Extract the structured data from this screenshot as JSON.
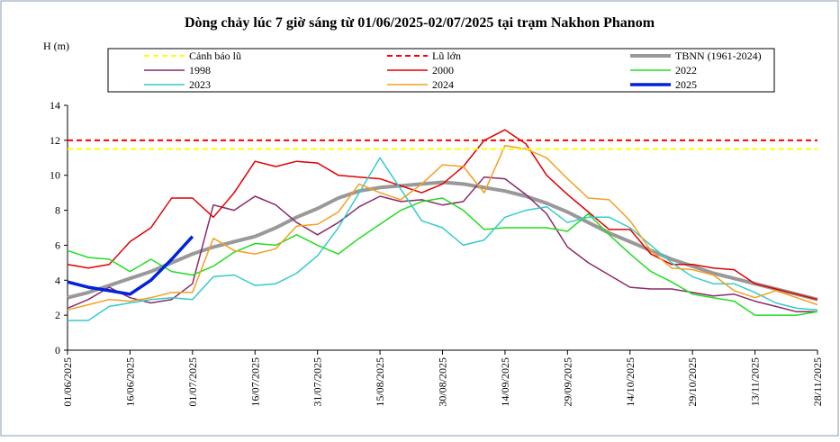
{
  "chart_data": {
    "type": "line",
    "title": "Dòng chảy lúc 7 giờ sáng từ 01/06/2025-02/07/2025 tại trạm Nakhon Phanom",
    "y_label": "H (m)",
    "x": [
      "01/06/2025",
      "06/06/2025",
      "11/06/2025",
      "16/06/2025",
      "21/06/2025",
      "26/06/2025",
      "01/07/2025",
      "06/07/2025",
      "11/07/2025",
      "16/07/2025",
      "21/07/2025",
      "26/07/2025",
      "31/07/2025",
      "05/08/2025",
      "10/08/2025",
      "15/08/2025",
      "20/08/2025",
      "25/08/2025",
      "30/08/2025",
      "04/09/2025",
      "09/09/2025",
      "14/09/2025",
      "19/09/2025",
      "24/09/2025",
      "29/09/2025",
      "04/10/2025",
      "09/10/2025",
      "14/10/2025",
      "19/10/2025",
      "24/10/2025",
      "29/10/2025",
      "03/11/2025",
      "08/11/2025",
      "13/11/2025",
      "18/11/2025",
      "23/11/2025",
      "28/11/2025"
    ],
    "xlim": [
      "01/06/2025",
      "28/11/2025"
    ],
    "xticks": [
      "01/06/2025",
      "16/06/2025",
      "01/07/2025",
      "16/07/2025",
      "31/07/2025",
      "15/08/2025",
      "30/08/2025",
      "14/09/2025",
      "29/09/2025",
      "14/10/2025",
      "29/10/2025",
      "13/11/2025",
      "28/11/2025"
    ],
    "ylim": [
      0,
      14
    ],
    "yticks": [
      0,
      2,
      4,
      6,
      8,
      10,
      12,
      14
    ],
    "series": [
      {
        "name": "Cảnh báo lũ",
        "color": "#ffff00",
        "dashed": true,
        "level": 11.5
      },
      {
        "name": "Lũ lớn",
        "color": "#ff0000",
        "dashed": true,
        "level": 12
      },
      {
        "name": "TBNN (1961-2024)",
        "color": "#999999",
        "width": 4,
        "values": [
          3.0,
          3.3,
          3.7,
          4.1,
          4.5,
          5.0,
          5.5,
          5.9,
          6.2,
          6.5,
          7.0,
          7.6,
          8.1,
          8.7,
          9.1,
          9.3,
          9.4,
          9.5,
          9.6,
          9.5,
          9.3,
          9.1,
          8.8,
          8.4,
          7.9,
          7.3,
          6.7,
          6.2,
          5.7,
          5.2,
          4.8,
          4.4,
          4.1,
          3.8,
          3.5,
          3.2,
          2.9
        ]
      },
      {
        "name": "1998",
        "color": "#8b2a6b",
        "values": [
          2.4,
          2.9,
          3.6,
          3.0,
          2.7,
          2.9,
          3.8,
          8.3,
          8.0,
          8.8,
          8.3,
          7.3,
          6.6,
          7.3,
          8.2,
          8.8,
          8.5,
          8.6,
          8.3,
          8.5,
          9.9,
          9.8,
          8.9,
          7.8,
          5.9,
          5.0,
          4.3,
          3.6,
          3.5,
          3.5,
          3.3,
          3.1,
          3.2,
          2.8,
          2.5,
          2.2,
          2.2
        ]
      },
      {
        "name": "2000",
        "color": "#e00000",
        "values": [
          4.9,
          4.7,
          4.9,
          6.2,
          7.0,
          8.7,
          8.7,
          7.6,
          9.0,
          10.8,
          10.5,
          10.8,
          10.7,
          10.0,
          9.9,
          9.8,
          9.4,
          9.0,
          9.5,
          10.5,
          12.0,
          12.6,
          11.8,
          10.0,
          8.9,
          7.9,
          6.9,
          6.9,
          5.5,
          4.9,
          4.9,
          4.7,
          4.6,
          3.8,
          3.5,
          3.2,
          2.9
        ]
      },
      {
        "name": "2022",
        "color": "#22dd22",
        "values": [
          5.7,
          5.3,
          5.2,
          4.5,
          5.2,
          4.5,
          4.3,
          4.8,
          5.6,
          6.1,
          6.0,
          6.6,
          6.0,
          5.5,
          6.4,
          7.2,
          8.0,
          8.5,
          8.7,
          8.0,
          6.9,
          7.0,
          7.0,
          7.0,
          6.8,
          7.8,
          6.6,
          5.5,
          4.5,
          3.9,
          3.2,
          3.0,
          2.8,
          2.0,
          2.0,
          2.0,
          2.2
        ]
      },
      {
        "name": "2023",
        "color": "#33cccc",
        "values": [
          1.7,
          1.7,
          2.5,
          2.7,
          2.9,
          3.0,
          2.9,
          4.2,
          4.3,
          3.7,
          3.8,
          4.4,
          5.4,
          7.0,
          9.0,
          11.0,
          9.2,
          7.4,
          7.0,
          6.0,
          6.3,
          7.6,
          8.0,
          8.2,
          7.3,
          7.6,
          7.6,
          7.0,
          6.0,
          5.0,
          4.2,
          3.8,
          3.8,
          3.3,
          2.7,
          2.4,
          2.3
        ]
      },
      {
        "name": "2024",
        "color": "#f5a020",
        "values": [
          2.3,
          2.6,
          2.9,
          2.8,
          3.0,
          3.3,
          3.3,
          6.4,
          5.7,
          5.5,
          5.8,
          7.1,
          7.2,
          7.9,
          9.5,
          9.0,
          8.6,
          9.5,
          10.6,
          10.5,
          9.0,
          11.7,
          11.5,
          11.0,
          9.8,
          8.7,
          8.6,
          7.4,
          5.7,
          4.7,
          4.6,
          4.3,
          3.4,
          3.0,
          3.4,
          3.0,
          2.6
        ]
      },
      {
        "name": "2025",
        "color": "#0022dd",
        "width": 3.5,
        "values": [
          3.9,
          3.6,
          3.4,
          3.2,
          4.0,
          5.2,
          6.5,
          null,
          null,
          null,
          null,
          null,
          null,
          null,
          null,
          null,
          null,
          null,
          null,
          null,
          null,
          null,
          null,
          null,
          null,
          null,
          null,
          null,
          null,
          null,
          null,
          null,
          null,
          null,
          null,
          null,
          null
        ]
      }
    ]
  }
}
